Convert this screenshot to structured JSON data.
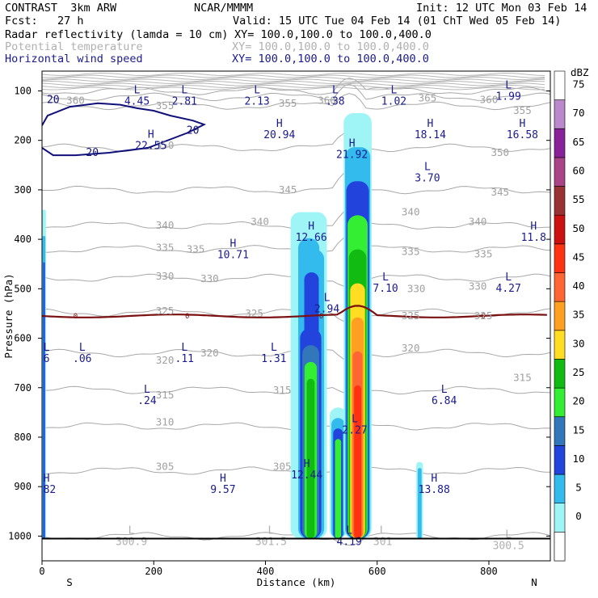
{
  "header": {
    "model_line": "CONTRAST  3km ARW",
    "org": "NCAR/MMMM",
    "init": "Init: 12 UTC Mon 03 Feb 14",
    "fcst": "Fcst:   27 h",
    "valid": "Valid: 15 UTC Tue 04 Feb 14 (01 ChT Wed 05 Feb 14)",
    "field1_name": "Radar reflectivity (lamda = 10 cm)",
    "field1_xy": "XY= 100.0,100.0 to 100.0,400.0",
    "field2_name": "Potential temperature",
    "field2_xy": "XY= 100.0,100.0 to 100.0,400.0",
    "field3_name": "Horizontal wind speed",
    "field3_xy": "XY= 100.0,100.0 to 100.0,400.0"
  },
  "chart_data": {
    "type": "cross-section",
    "xlabel": "Distance (km)",
    "ylabel": "Pressure (hPa)",
    "x_ticks": [
      0,
      200,
      400,
      600,
      800
    ],
    "xlim": [
      0,
      910
    ],
    "y_ticks": [
      100,
      200,
      300,
      400,
      500,
      600,
      700,
      800,
      900,
      1000
    ],
    "ylim": [
      1050,
      60
    ],
    "x_left_label": "S",
    "x_right_label": "N",
    "colorbar": {
      "unit": "dBZ",
      "levels": [
        "0",
        "5",
        "10",
        "15",
        "20",
        "25",
        "30",
        "35",
        "40",
        "45",
        "50",
        "55",
        "60",
        "65",
        "70",
        "75"
      ],
      "colors": [
        "#ffffff",
        "#9ff5f5",
        "#33bbee",
        "#2244dd",
        "#3377bb",
        "#33ee33",
        "#11bb11",
        "#ffdd22",
        "#ffa022",
        "#ff6633",
        "#ff3311",
        "#cc1111",
        "#993333",
        "#aa4488",
        "#882299",
        "#bb88cc"
      ]
    },
    "theta_contours": {
      "levels": [
        300,
        305,
        310,
        315,
        320,
        325,
        330,
        335,
        340,
        345,
        350,
        355,
        360,
        365
      ],
      "labels": [
        {
          "text": "360",
          "x": 60,
          "p": 120
        },
        {
          "text": "355",
          "x": 220,
          "p": 130
        },
        {
          "text": "355",
          "x": 440,
          "p": 125
        },
        {
          "text": "360",
          "x": 510,
          "p": 120
        },
        {
          "text": "365",
          "x": 690,
          "p": 115
        },
        {
          "text": "360",
          "x": 800,
          "p": 118
        },
        {
          "text": "355",
          "x": 860,
          "p": 140
        },
        {
          "text": "350",
          "x": 220,
          "p": 210
        },
        {
          "text": "350",
          "x": 820,
          "p": 225
        },
        {
          "text": "345",
          "x": 440,
          "p": 300
        },
        {
          "text": "345",
          "x": 820,
          "p": 305
        },
        {
          "text": "340",
          "x": 220,
          "p": 372
        },
        {
          "text": "340",
          "x": 390,
          "p": 365
        },
        {
          "text": "340",
          "x": 660,
          "p": 345
        },
        {
          "text": "340",
          "x": 780,
          "p": 365
        },
        {
          "text": "335",
          "x": 220,
          "p": 417
        },
        {
          "text": "335",
          "x": 275,
          "p": 420
        },
        {
          "text": "335",
          "x": 660,
          "p": 425
        },
        {
          "text": "335",
          "x": 790,
          "p": 430
        },
        {
          "text": "330",
          "x": 220,
          "p": 475
        },
        {
          "text": "330",
          "x": 300,
          "p": 480
        },
        {
          "text": "330",
          "x": 670,
          "p": 500
        },
        {
          "text": "330",
          "x": 780,
          "p": 495
        },
        {
          "text": "325",
          "x": 220,
          "p": 545
        },
        {
          "text": "325",
          "x": 380,
          "p": 550
        },
        {
          "text": "325",
          "x": 660,
          "p": 555
        },
        {
          "text": "325",
          "x": 790,
          "p": 555
        },
        {
          "text": "320",
          "x": 220,
          "p": 645
        },
        {
          "text": "320",
          "x": 300,
          "p": 630
        },
        {
          "text": "320",
          "x": 660,
          "p": 620
        },
        {
          "text": "315",
          "x": 220,
          "p": 715
        },
        {
          "text": "315",
          "x": 430,
          "p": 705
        },
        {
          "text": "315",
          "x": 860,
          "p": 680
        },
        {
          "text": "310",
          "x": 220,
          "p": 770
        },
        {
          "text": "305",
          "x": 220,
          "p": 860
        },
        {
          "text": "305",
          "x": 430,
          "p": 860
        }
      ]
    },
    "wind_contour": {
      "level": 20,
      "labels": [
        "20",
        "20",
        "20"
      ]
    },
    "freezing_line": {
      "label": "0",
      "p_approx": 555
    },
    "extrema": [
      {
        "kind": "L",
        "value": "4.45",
        "x": 170,
        "p": 110
      },
      {
        "kind": "L",
        "value": "2.81",
        "x": 255,
        "p": 110
      },
      {
        "kind": "L",
        "value": "2.13",
        "x": 385,
        "p": 110
      },
      {
        "kind": "L",
        "value": ".38",
        "x": 525,
        "p": 110
      },
      {
        "kind": "L",
        "value": "1.02",
        "x": 630,
        "p": 110
      },
      {
        "kind": "L",
        "value": "1.99",
        "x": 835,
        "p": 100
      },
      {
        "kind": "H",
        "value": "20.94",
        "x": 425,
        "p": 178
      },
      {
        "kind": "H",
        "value": "18.14",
        "x": 695,
        "p": 178
      },
      {
        "kind": "H",
        "value": "16.58",
        "x": 860,
        "p": 178
      },
      {
        "kind": "H",
        "value": "22.55",
        "x": 195,
        "p": 200
      },
      {
        "kind": "H",
        "value": "21.92",
        "x": 555,
        "p": 218
      },
      {
        "kind": "L",
        "value": "3.70",
        "x": 690,
        "p": 265
      },
      {
        "kind": "H",
        "value": "12.66",
        "x": 482,
        "p": 385
      },
      {
        "kind": "H",
        "value": "11.8",
        "x": 880,
        "p": 385
      },
      {
        "kind": "H",
        "value": "10.71",
        "x": 342,
        "p": 420
      },
      {
        "kind": "L",
        "value": "7.10",
        "x": 615,
        "p": 488
      },
      {
        "kind": "L",
        "value": "4.27",
        "x": 835,
        "p": 488
      },
      {
        "kind": "L",
        "value": "2.94",
        "x": 510,
        "p": 530
      },
      {
        "kind": "L",
        "value": "6",
        "x": 8,
        "p": 630
      },
      {
        "kind": "L",
        "value": ".06",
        "x": 72,
        "p": 630
      },
      {
        "kind": "L",
        "value": ".11",
        "x": 255,
        "p": 630
      },
      {
        "kind": "L",
        "value": "1.31",
        "x": 415,
        "p": 630
      },
      {
        "kind": "L",
        "value": ".24",
        "x": 188,
        "p": 715
      },
      {
        "kind": "L",
        "value": "6.84",
        "x": 720,
        "p": 715
      },
      {
        "kind": "L",
        "value": "2.27",
        "x": 560,
        "p": 775
      },
      {
        "kind": "H",
        "value": "12.44",
        "x": 474,
        "p": 865
      },
      {
        "kind": "H",
        "value": "9.57",
        "x": 324,
        "p": 895
      },
      {
        "kind": "H",
        "value": "13.88",
        "x": 702,
        "p": 895
      },
      {
        "kind": "H",
        "value": ".82",
        "x": 8,
        "p": 895
      }
    ],
    "surface_theta_labels": [
      {
        "kind": "L",
        "value": "300.9",
        "x": 160,
        "p": 1000
      },
      {
        "kind": "L",
        "value": "301.5",
        "x": 410,
        "p": 1000
      },
      {
        "kind": "L",
        "value": "301",
        "x": 610,
        "p": 1000
      },
      {
        "kind": "L",
        "value": "300.5",
        "x": 835,
        "p": 1008
      }
    ],
    "surface_wind_label": {
      "kind": "L",
      "value": "4.19",
      "x": 550,
      "p": 1000
    }
  }
}
